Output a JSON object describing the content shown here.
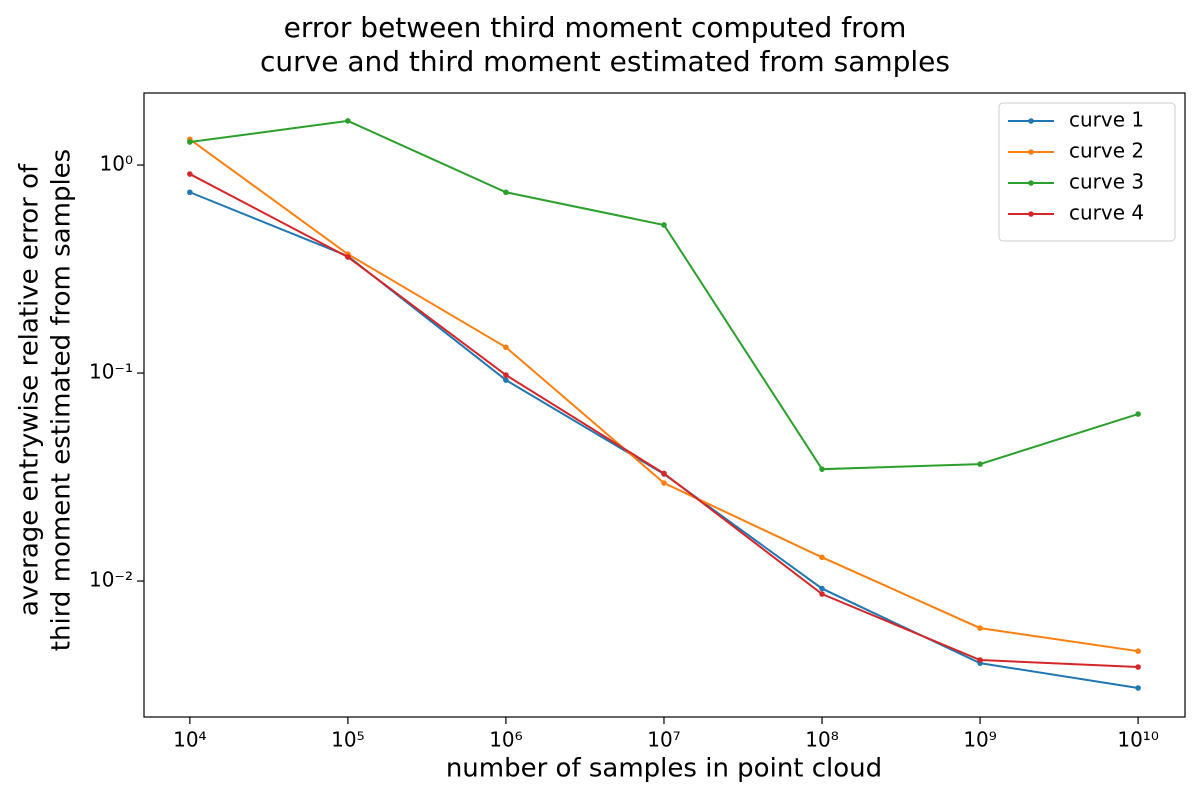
{
  "chart_data": {
    "type": "line",
    "title": [
      "error between third moment computed from",
      "curve and third moment estimated from samples"
    ],
    "xlabel": "number of samples in point cloud",
    "ylabel": [
      "average entrywise relative error of",
      "third moment estimated from samples"
    ],
    "x": [
      10000,
      100000,
      1000000,
      10000000,
      100000000,
      1000000000,
      10000000000
    ],
    "series": [
      {
        "name": "curve 1",
        "color": "#1f77b4",
        "values": [
          0.74,
          0.365,
          0.0925,
          0.0327,
          0.0092,
          0.00403,
          0.00306
        ]
      },
      {
        "name": "curve 2",
        "color": "#ff7f0e",
        "values": [
          1.33,
          0.373,
          0.133,
          0.0296,
          0.013,
          0.00594,
          0.0046
        ]
      },
      {
        "name": "curve 3",
        "color": "#2ca02c",
        "values": [
          1.29,
          1.63,
          0.74,
          0.515,
          0.0345,
          0.0365,
          0.0635
        ]
      },
      {
        "name": "curve 4",
        "color": "#d62728",
        "values": [
          0.905,
          0.361,
          0.0978,
          0.0329,
          0.00866,
          0.00417,
          0.00386
        ]
      }
    ],
    "xscale": "log",
    "yscale": "log",
    "xlim": [
      5128,
      19800000000
    ],
    "ylim": [
      0.00222,
      2.22
    ],
    "xticks": [
      {
        "value": 10000,
        "label": "10⁴"
      },
      {
        "value": 100000,
        "label": "10⁵"
      },
      {
        "value": 1000000,
        "label": "10⁶"
      },
      {
        "value": 10000000,
        "label": "10⁷"
      },
      {
        "value": 100000000,
        "label": "10⁸"
      },
      {
        "value": 1000000000,
        "label": "10⁹"
      },
      {
        "value": 10000000000,
        "label": "10¹⁰"
      }
    ],
    "yticks": [
      {
        "value": 0.01,
        "label": "10⁻²"
      },
      {
        "value": 0.1,
        "label": "10⁻¹"
      },
      {
        "value": 1,
        "label": "10⁰"
      }
    ],
    "legend": "upper right",
    "grid": false
  }
}
